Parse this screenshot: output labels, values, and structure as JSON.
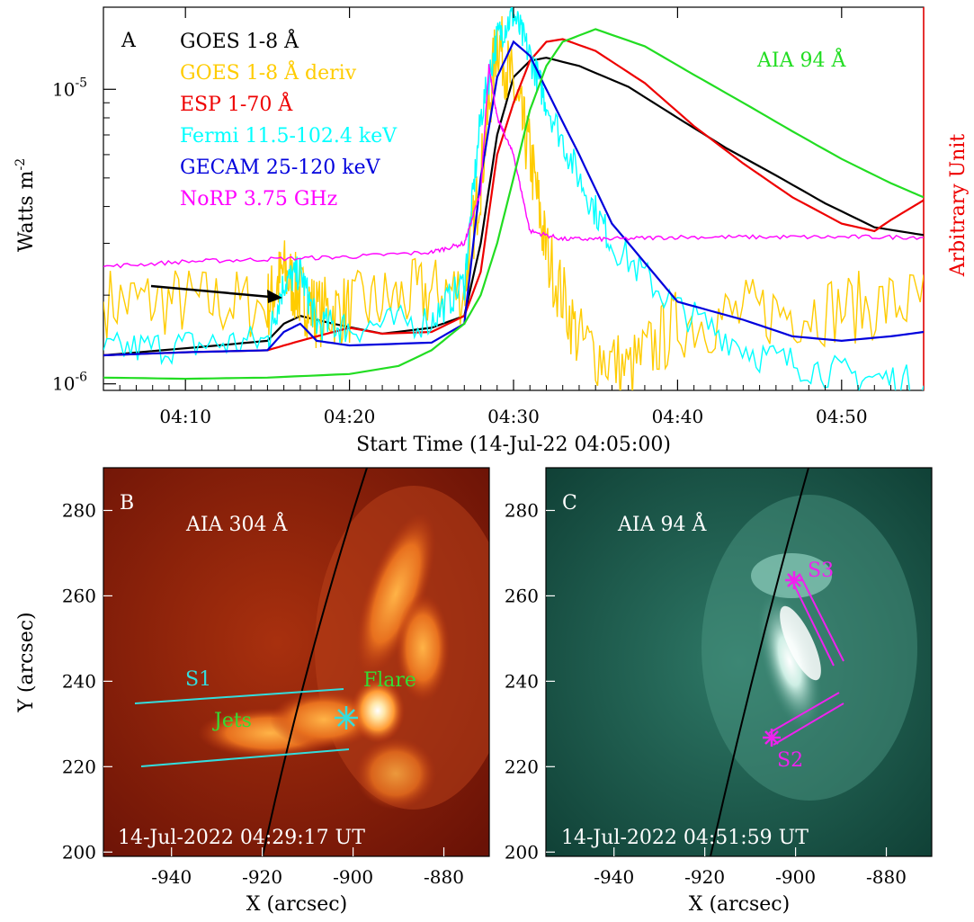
{
  "panel_a": {
    "label": "A",
    "ylabel": "Watts m",
    "ylabel_sup": "-2",
    "ylabel_right": "Arbitrary Unit",
    "xlabel": "Start Time (14-Jul-22 04:05:00)",
    "annotation": "AIA 94 Å",
    "y_ticks": [
      {
        "base": "10",
        "exp": "-5",
        "value": 1e-05
      },
      {
        "base": "10",
        "exp": "-6",
        "value": 1e-06
      }
    ],
    "x_ticks": [
      "04:10",
      "04:20",
      "04:30",
      "04:40",
      "04:50"
    ],
    "legend": [
      {
        "label": "GOES 1-8 Å",
        "color": "#000000"
      },
      {
        "label": "GOES 1-8 Å deriv",
        "color": "#ffcc00"
      },
      {
        "label": "ESP 1-70 Å",
        "color": "#ee0000"
      },
      {
        "label": "Fermi 11.5-102.4 keV",
        "color": "#00ffff"
      },
      {
        "label": "GECAM 25-120 keV",
        "color": "#0000dd"
      },
      {
        "label": "NoRP 3.75 GHz",
        "color": "#ff00ff"
      }
    ],
    "aia_color": "#22dd22"
  },
  "chart_data": {
    "type": "line",
    "title": "",
    "xlabel": "Start Time (14-Jul-22 04:05:00)",
    "ylabel": "Watts m-2",
    "y_scale": "log",
    "ylim": [
      9.5e-07,
      1.9e-05
    ],
    "xlim": [
      "04:05",
      "04:55"
    ],
    "legend_position": "top-left",
    "series": [
      {
        "name": "GOES 1-8 Å",
        "color": "#000000",
        "x": [
          "04:05",
          "04:12",
          "04:15",
          "04:16",
          "04:17",
          "04:19",
          "04:22",
          "04:25",
          "04:27",
          "04:28",
          "04:29",
          "04:30",
          "04:31",
          "04:32",
          "04:34",
          "04:37",
          "04:40",
          "04:43",
          "04:46",
          "04:49",
          "04:52",
          "04:55"
        ],
        "y": [
          1.25e-06,
          1.35e-06,
          1.4e-06,
          1.6e-06,
          1.7e-06,
          1.6e-06,
          1.48e-06,
          1.55e-06,
          1.7e-06,
          3e-06,
          7e-06,
          1.1e-05,
          1.25e-05,
          1.28e-05,
          1.2e-05,
          1.02e-05,
          8e-06,
          6.3e-06,
          5.1e-06,
          4.1e-06,
          3.4e-06,
          3.2e-06
        ]
      },
      {
        "name": "GOES 1-8 Å deriv",
        "color": "#ffcc00",
        "x": [
          "04:05",
          "04:10",
          "04:15",
          "04:16",
          "04:17",
          "04:18",
          "04:20",
          "04:24",
          "04:27",
          "04:28",
          "04:29",
          "04:30",
          "04:31",
          "04:32",
          "04:34",
          "04:37",
          "04:40",
          "04:45",
          "04:50",
          "04:55"
        ],
        "y": [
          1.9e-06,
          1.9e-06,
          1.85e-06,
          2.4e-06,
          2e-06,
          1.75e-06,
          1.8e-06,
          2e-06,
          2.1e-06,
          5e-06,
          1.5e-05,
          1e-05,
          6e-06,
          2.8e-06,
          1.4e-06,
          1.1e-06,
          1.6e-06,
          1.75e-06,
          1.8e-06,
          1.9e-06
        ]
      },
      {
        "name": "ESP 1-70 Å",
        "color": "#ee0000",
        "x": [
          "04:05",
          "04:10",
          "04:15",
          "04:17",
          "04:20",
          "04:22",
          "04:25",
          "04:27",
          "04:28",
          "04:29",
          "04:30",
          "04:31",
          "04:32",
          "04:33",
          "04:35",
          "04:38",
          "04:41",
          "04:44",
          "04:47",
          "04:50",
          "04:52",
          "04:53",
          "04:55"
        ],
        "y": [
          1.25e-06,
          1.28e-06,
          1.3e-06,
          1.4e-06,
          1.55e-06,
          1.48e-06,
          1.5e-06,
          1.7e-06,
          2.4e-06,
          6e-06,
          9e-06,
          1.25e-05,
          1.45e-05,
          1.48e-05,
          1.35e-05,
          1.05e-05,
          7.5e-06,
          5.6e-06,
          4.3e-06,
          3.5e-06,
          3.3e-06,
          3.6e-06,
          4.2e-06
        ]
      },
      {
        "name": "Fermi 11.5-102.4 keV",
        "color": "#00ffff",
        "x": [
          "04:05",
          "04:10",
          "04:15",
          "04:16",
          "04:17",
          "04:18",
          "04:20",
          "04:25",
          "04:27",
          "04:28",
          "04:29",
          "04:30",
          "04:31",
          "04:32",
          "04:34",
          "04:36",
          "04:40",
          "04:45",
          "04:50",
          "04:55"
        ],
        "y": [
          1.3e-06,
          1.35e-06,
          1.4e-06,
          2.2e-06,
          2.4e-06,
          1.6e-06,
          1.55e-06,
          1.65e-06,
          2.2e-06,
          8e-06,
          1.5e-05,
          1.8e-05,
          1.3e-05,
          9e-06,
          5e-06,
          3e-06,
          1.8e-06,
          1.25e-06,
          1.08e-06,
          1e-06
        ]
      },
      {
        "name": "GECAM 25-120 keV",
        "color": "#0000dd",
        "x": [
          "04:05",
          "04:10",
          "04:15",
          "04:16",
          "04:17",
          "04:18",
          "04:20",
          "04:25",
          "04:27",
          "04:28",
          "04:29",
          "04:30",
          "04:31",
          "04:32",
          "04:34",
          "04:36",
          "04:40",
          "04:44",
          "04:47",
          "04:50",
          "04:53",
          "04:55"
        ],
        "y": [
          1.25e-06,
          1.28e-06,
          1.3e-06,
          1.5e-06,
          1.6e-06,
          1.4e-06,
          1.35e-06,
          1.38e-06,
          1.6e-06,
          5e-06,
          1.1e-05,
          1.45e-05,
          1.3e-05,
          1e-05,
          6e-06,
          3.5e-06,
          1.9e-06,
          1.65e-06,
          1.45e-06,
          1.4e-06,
          1.45e-06,
          1.5e-06
        ]
      },
      {
        "name": "NoRP 3.75 GHz",
        "color": "#ff00ff",
        "x": [
          "04:05",
          "04:10",
          "04:15",
          "04:20",
          "04:25",
          "04:27",
          "04:28",
          "04:285",
          "04:29",
          "04:30",
          "04:31",
          "04:33",
          "04:36",
          "04:40",
          "04:45",
          "04:50",
          "04:55"
        ],
        "y": [
          2.5e-06,
          2.6e-06,
          2.65e-06,
          2.7e-06,
          2.8e-06,
          3e-06,
          4.5e-06,
          1.2e-05,
          8e-06,
          6e-06,
          3.3e-06,
          3.1e-06,
          3.1e-06,
          3.15e-06,
          3.15e-06,
          3.15e-06,
          3.15e-06
        ]
      },
      {
        "name": "AIA 94 Å",
        "color": "#22dd22",
        "x": [
          "04:05",
          "04:10",
          "04:15",
          "04:20",
          "04:23",
          "04:25",
          "04:27",
          "04:28",
          "04:29",
          "04:30",
          "04:31",
          "04:32",
          "04:33",
          "04:35",
          "04:38",
          "04:41",
          "04:44",
          "04:47",
          "04:50",
          "04:53",
          "04:55"
        ],
        "y": [
          1.05e-06,
          1.04e-06,
          1.05e-06,
          1.08e-06,
          1.15e-06,
          1.3e-06,
          1.6e-06,
          2e-06,
          3e-06,
          5e-06,
          8.5e-06,
          1.2e-05,
          1.45e-05,
          1.6e-05,
          1.4e-05,
          1.12e-05,
          9e-06,
          7.2e-06,
          5.8e-06,
          4.8e-06,
          4.3e-06
        ]
      }
    ]
  },
  "panel_b": {
    "label": "B",
    "title": "AIA 304 Å",
    "timestamp": "14-Jul-2022 04:29:17 UT",
    "labels": {
      "s1": "S1",
      "jets": "Jets",
      "flare": "Flare"
    },
    "xlabel": "X (arcsec)",
    "ylabel": "Y (arcsec)",
    "x_ticks": [
      "-940",
      "-920",
      "-900",
      "-880"
    ],
    "y_ticks": [
      "280",
      "260",
      "240",
      "220",
      "200"
    ]
  },
  "panel_c": {
    "label": "C",
    "title": "AIA 94 Å",
    "timestamp": "14-Jul-2022 04:51:59 UT",
    "labels": {
      "s2": "S2",
      "s3": "S3"
    },
    "xlabel": "X (arcsec)",
    "x_ticks": [
      "-940",
      "-920",
      "-900",
      "-880"
    ],
    "y_ticks": [
      "280",
      "260",
      "240",
      "220",
      "200"
    ]
  }
}
